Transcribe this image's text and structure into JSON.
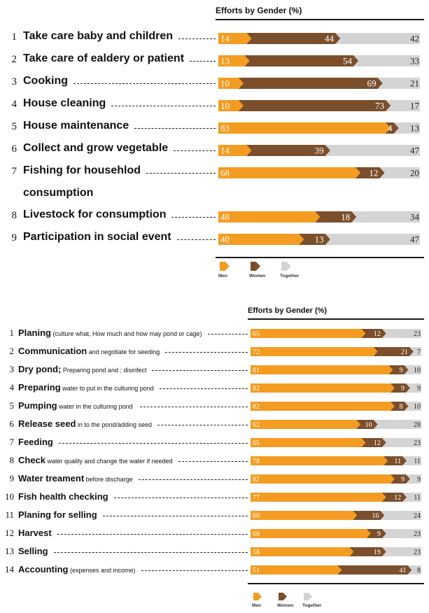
{
  "colors": {
    "men": "#f39c21",
    "women": "#7b4f2c",
    "together": "#d4d4d4"
  },
  "chart_data": [
    {
      "type": "bar",
      "title": "Efforts by Gender (%)",
      "categories": [
        {
          "num": "1",
          "label": "Take care baby and children",
          "suffix": ""
        },
        {
          "num": "2",
          "label": "Take care of ealdery or patient",
          "suffix": ""
        },
        {
          "num": "3",
          "label": "Cooking",
          "suffix": ""
        },
        {
          "num": "4",
          "label": "House cleaning",
          "suffix": ""
        },
        {
          "num": "5",
          "label": "House maintenance",
          "suffix": ""
        },
        {
          "num": "6",
          "label": "Collect and grow vegetable",
          "suffix": ""
        },
        {
          "num": "7",
          "label": "Fishing for househlod",
          "label2": "consumption",
          "suffix": ""
        },
        {
          "num": "8",
          "label": "Livestock for consumption",
          "suffix": ""
        },
        {
          "num": "9",
          "label": "Participation in social event",
          "suffix": ""
        }
      ],
      "series": [
        {
          "name": "Men",
          "values": [
            14,
            13,
            10,
            10,
            83,
            14,
            68,
            48,
            40
          ]
        },
        {
          "name": "Women",
          "values": [
            44,
            54,
            69,
            73,
            4,
            39,
            12,
            18,
            13
          ]
        },
        {
          "name": "Together",
          "values": [
            42,
            33,
            21,
            17,
            13,
            47,
            20,
            34,
            47
          ]
        }
      ],
      "legend": [
        "Men",
        "Women",
        "Together"
      ]
    },
    {
      "type": "bar",
      "title": "Efforts by Gender (%)",
      "categories": [
        {
          "num": "1",
          "label": "Planing",
          "suffix": "(culture what, How much and how may pond or cage)"
        },
        {
          "num": "2",
          "label": "Communication",
          "suffix": "and negotiate for seeding"
        },
        {
          "num": "3",
          "label": "Dry pond;",
          "suffix": "Preparing pond and ; disinfect"
        },
        {
          "num": "4",
          "label": "Preparing",
          "suffix": "water to put in the culturing pond"
        },
        {
          "num": "5",
          "label": "Pumping",
          "suffix": "water in the  culturing pond"
        },
        {
          "num": "6",
          "label": "Release seed",
          "suffix": "in to the pond/adding seed"
        },
        {
          "num": "7",
          "label": "Feeding",
          "suffix": ""
        },
        {
          "num": "8",
          "label": "Check",
          "suffix": "water quality and change the water if needed"
        },
        {
          "num": "9",
          "label": "Water treament",
          "suffix": "before discharge"
        },
        {
          "num": "10",
          "label": "Fish health checking",
          "suffix": ""
        },
        {
          "num": "11",
          "label": "Planing for selling",
          "suffix": ""
        },
        {
          "num": "12",
          "label": "Harvest",
          "suffix": ""
        },
        {
          "num": "13",
          "label": "Selling",
          "suffix": ""
        },
        {
          "num": "14",
          "label": "Accounting",
          "suffix": "(expenses and income)"
        }
      ],
      "series": [
        {
          "name": "Men",
          "values": [
            65,
            72,
            81,
            82,
            82,
            62,
            65,
            78,
            82,
            77,
            60,
            68,
            58,
            51
          ]
        },
        {
          "name": "Women",
          "values": [
            12,
            21,
            9,
            9,
            8,
            10,
            12,
            11,
            9,
            12,
            16,
            9,
            19,
            41
          ]
        },
        {
          "name": "Together",
          "values": [
            23,
            7,
            10,
            9,
            10,
            28,
            23,
            11,
            9,
            11,
            24,
            23,
            23,
            8
          ]
        }
      ],
      "legend": [
        "Men",
        "Women",
        "Together"
      ]
    }
  ]
}
